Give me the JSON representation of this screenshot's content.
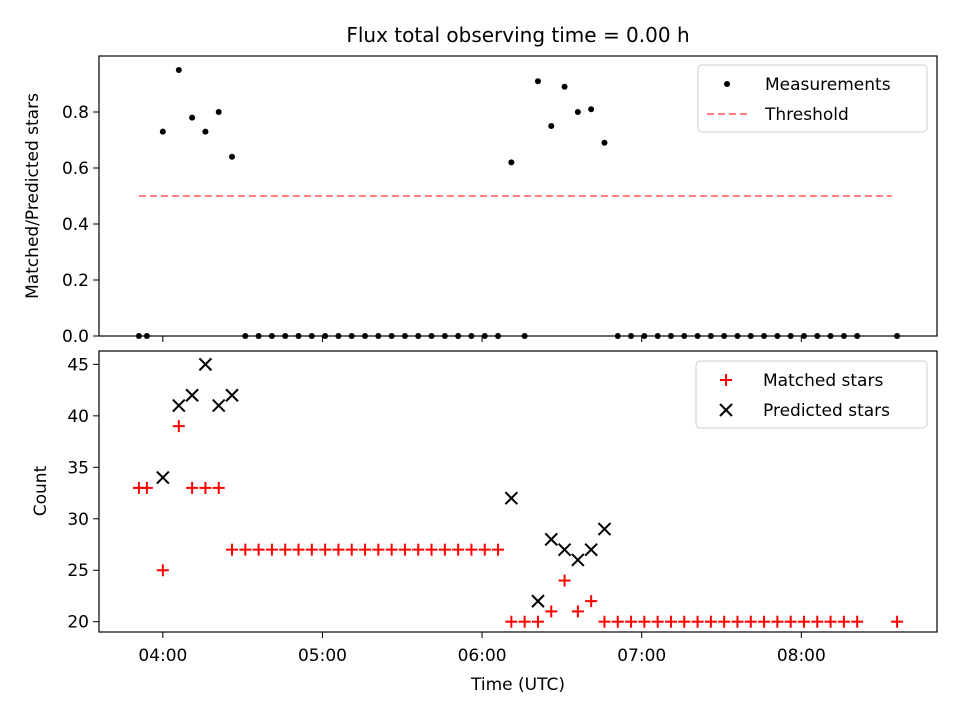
{
  "chart_data": [
    {
      "type": "scatter",
      "title": "Flux total observing time = 0.00 h",
      "xlabel": "",
      "ylabel": "Matched/Predicted stars",
      "xlim": [
        "03:36",
        "08:51"
      ],
      "ylim": [
        0,
        1.0
      ],
      "yticks": [
        0.0,
        0.2,
        0.4,
        0.6,
        0.8
      ],
      "yticklabels": [
        "0.0",
        "0.2",
        "0.4",
        "0.6",
        "0.8"
      ],
      "xticks": [
        "04:00",
        "05:00",
        "06:00",
        "07:00",
        "08:00"
      ],
      "grid": false,
      "legend": {
        "position": "top-right",
        "entries": [
          "Measurements",
          "Threshold"
        ]
      },
      "series": [
        {
          "name": "Measurements",
          "kind": "scatter",
          "color": "#000000",
          "points": [
            [
              "03:51",
              0
            ],
            [
              "03:54",
              0
            ],
            [
              "04:00",
              0.73
            ],
            [
              "04:06",
              0.95
            ],
            [
              "04:11",
              0.78
            ],
            [
              "04:16",
              0.73
            ],
            [
              "04:21",
              0.8
            ],
            [
              "04:26",
              0.64
            ],
            [
              "04:31",
              0
            ],
            [
              "04:36",
              0
            ],
            [
              "04:41",
              0
            ],
            [
              "04:46",
              0
            ],
            [
              "04:51",
              0
            ],
            [
              "04:56",
              0
            ],
            [
              "05:01",
              0
            ],
            [
              "05:06",
              0
            ],
            [
              "05:11",
              0
            ],
            [
              "05:16",
              0
            ],
            [
              "05:21",
              0
            ],
            [
              "05:26",
              0
            ],
            [
              "05:31",
              0
            ],
            [
              "05:36",
              0
            ],
            [
              "05:41",
              0
            ],
            [
              "05:46",
              0
            ],
            [
              "05:51",
              0
            ],
            [
              "05:56",
              0
            ],
            [
              "06:01",
              0
            ],
            [
              "06:06",
              0
            ],
            [
              "06:11",
              0.62
            ],
            [
              "06:16",
              0
            ],
            [
              "06:21",
              0.91
            ],
            [
              "06:26",
              0.75
            ],
            [
              "06:31",
              0.89
            ],
            [
              "06:36",
              0.8
            ],
            [
              "06:41",
              0.81
            ],
            [
              "06:46",
              0.69
            ],
            [
              "06:51",
              0
            ],
            [
              "06:56",
              0
            ],
            [
              "07:01",
              0
            ],
            [
              "07:06",
              0
            ],
            [
              "07:11",
              0
            ],
            [
              "07:16",
              0
            ],
            [
              "07:21",
              0
            ],
            [
              "07:26",
              0
            ],
            [
              "07:31",
              0
            ],
            [
              "07:36",
              0
            ],
            [
              "07:41",
              0
            ],
            [
              "07:46",
              0
            ],
            [
              "07:51",
              0
            ],
            [
              "07:56",
              0
            ],
            [
              "08:01",
              0
            ],
            [
              "08:06",
              0
            ],
            [
              "08:11",
              0
            ],
            [
              "08:16",
              0
            ],
            [
              "08:21",
              0
            ],
            [
              "08:36",
              0
            ]
          ]
        },
        {
          "name": "Threshold",
          "kind": "dashed-line",
          "color": "#ff7f7f",
          "points": [
            [
              "03:51",
              0.5
            ],
            [
              "08:34",
              0.5
            ]
          ]
        }
      ]
    },
    {
      "type": "scatter",
      "title": "",
      "xlabel": "Time (UTC)",
      "ylabel": "Count",
      "xlim": [
        "03:36",
        "08:51"
      ],
      "ylim": [
        19,
        46.3
      ],
      "yticks": [
        20,
        25,
        30,
        35,
        40,
        45
      ],
      "yticklabels": [
        "20",
        "25",
        "30",
        "35",
        "40",
        "45"
      ],
      "xticks": [
        "04:00",
        "05:00",
        "06:00",
        "07:00",
        "08:00"
      ],
      "xticklabels": [
        "04:00",
        "05:00",
        "06:00",
        "07:00",
        "08:00"
      ],
      "grid": false,
      "legend": {
        "position": "top-right",
        "entries": [
          "Matched stars",
          "Predicted stars"
        ]
      },
      "series": [
        {
          "name": "Matched stars",
          "marker": "+",
          "color": "#ff0000",
          "points": [
            [
              "03:51",
              33
            ],
            [
              "03:54",
              33
            ],
            [
              "04:00",
              25
            ],
            [
              "04:06",
              39
            ],
            [
              "04:11",
              33
            ],
            [
              "04:16",
              33
            ],
            [
              "04:21",
              33
            ],
            [
              "04:26",
              27
            ],
            [
              "04:31",
              27
            ],
            [
              "04:36",
              27
            ],
            [
              "04:41",
              27
            ],
            [
              "04:46",
              27
            ],
            [
              "04:51",
              27
            ],
            [
              "04:56",
              27
            ],
            [
              "05:01",
              27
            ],
            [
              "05:06",
              27
            ],
            [
              "05:11",
              27
            ],
            [
              "05:16",
              27
            ],
            [
              "05:21",
              27
            ],
            [
              "05:26",
              27
            ],
            [
              "05:31",
              27
            ],
            [
              "05:36",
              27
            ],
            [
              "05:41",
              27
            ],
            [
              "05:46",
              27
            ],
            [
              "05:51",
              27
            ],
            [
              "05:56",
              27
            ],
            [
              "06:01",
              27
            ],
            [
              "06:06",
              27
            ],
            [
              "06:11",
              20
            ],
            [
              "06:16",
              20
            ],
            [
              "06:21",
              20
            ],
            [
              "06:26",
              21
            ],
            [
              "06:31",
              24
            ],
            [
              "06:36",
              21
            ],
            [
              "06:41",
              22
            ],
            [
              "06:46",
              20
            ],
            [
              "06:51",
              20
            ],
            [
              "06:56",
              20
            ],
            [
              "07:01",
              20
            ],
            [
              "07:06",
              20
            ],
            [
              "07:11",
              20
            ],
            [
              "07:16",
              20
            ],
            [
              "07:21",
              20
            ],
            [
              "07:26",
              20
            ],
            [
              "07:31",
              20
            ],
            [
              "07:36",
              20
            ],
            [
              "07:41",
              20
            ],
            [
              "07:46",
              20
            ],
            [
              "07:51",
              20
            ],
            [
              "07:56",
              20
            ],
            [
              "08:01",
              20
            ],
            [
              "08:06",
              20
            ],
            [
              "08:11",
              20
            ],
            [
              "08:16",
              20
            ],
            [
              "08:21",
              20
            ],
            [
              "08:36",
              20
            ]
          ]
        },
        {
          "name": "Predicted stars",
          "marker": "x",
          "color": "#000000",
          "points": [
            [
              "04:00",
              34
            ],
            [
              "04:06",
              41
            ],
            [
              "04:11",
              42
            ],
            [
              "04:16",
              45
            ],
            [
              "04:21",
              41
            ],
            [
              "04:26",
              42
            ],
            [
              "06:11",
              32
            ],
            [
              "06:21",
              22
            ],
            [
              "06:26",
              28
            ],
            [
              "06:31",
              27
            ],
            [
              "06:36",
              26
            ],
            [
              "06:41",
              27
            ],
            [
              "06:46",
              29
            ]
          ]
        }
      ]
    }
  ]
}
